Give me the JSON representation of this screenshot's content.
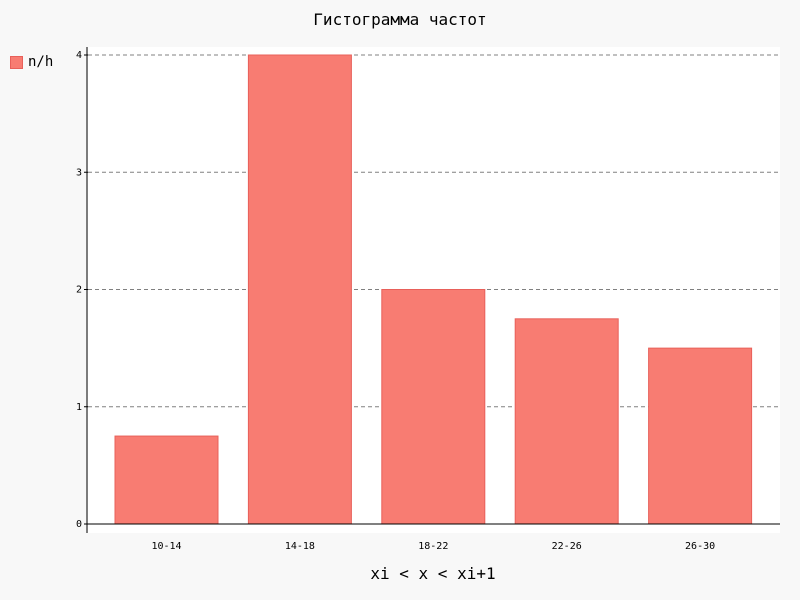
{
  "chart_data": {
    "type": "bar",
    "title": "Гистограмма частот",
    "xlabel": "xi < x < xi+1",
    "ylabel": "",
    "categories": [
      "10-14",
      "14-18",
      "18-22",
      "22-26",
      "26-30"
    ],
    "series": [
      {
        "name": "n/h",
        "values": [
          0.75,
          4,
          2,
          1.75,
          1.5
        ]
      }
    ],
    "ylim": [
      0,
      4
    ],
    "yticks": [
      "0",
      "1",
      "2",
      "3",
      "4"
    ],
    "grid": true,
    "legend_position": "top-left",
    "colors": {
      "bar_fill": "#f87c72",
      "bar_stroke": "#e8605a",
      "grid": "#808080"
    }
  }
}
